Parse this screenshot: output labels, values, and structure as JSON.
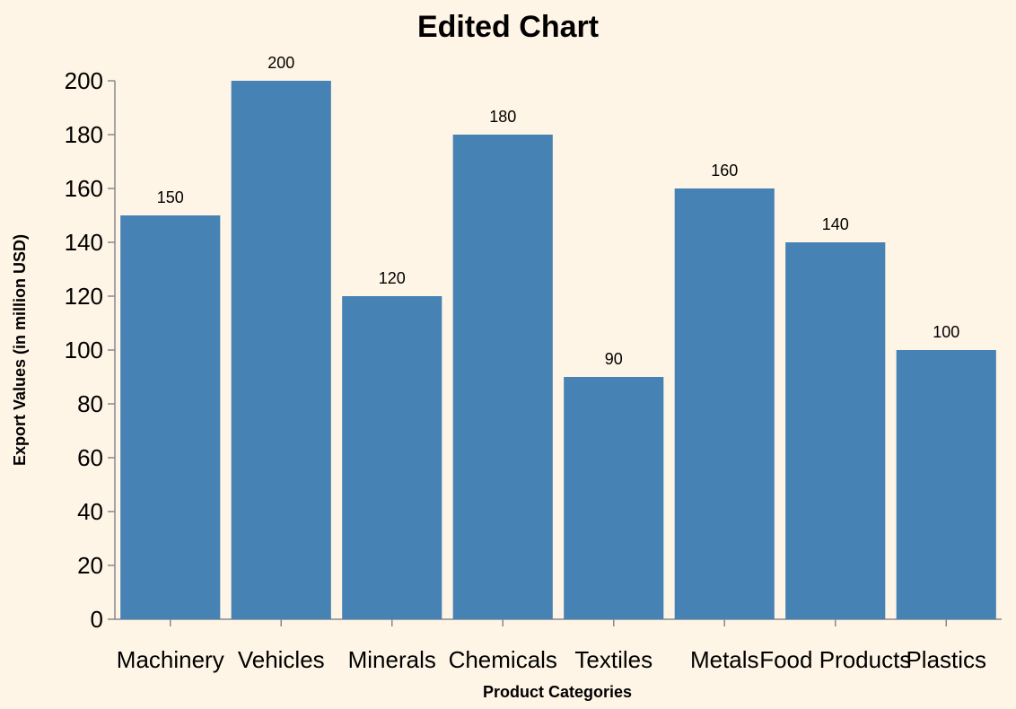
{
  "chart_data": {
    "type": "bar",
    "title": "Edited Chart",
    "xlabel": "Product Categories",
    "ylabel": "Export Values (in million USD)",
    "categories": [
      "Machinery",
      "Vehicles",
      "Minerals",
      "Chemicals",
      "Textiles",
      "Metals",
      "Food Products",
      "Plastics"
    ],
    "values": [
      150,
      200,
      120,
      180,
      90,
      160,
      140,
      100
    ],
    "ylim": [
      0,
      200
    ],
    "yticks": [
      0,
      20,
      40,
      60,
      80,
      100,
      120,
      140,
      160,
      180,
      200
    ],
    "grid": false,
    "legend": "none",
    "colors": {
      "background": "#FFF5E6",
      "bar": "#4682B4",
      "axis": "#888888",
      "text": "#000000"
    }
  }
}
